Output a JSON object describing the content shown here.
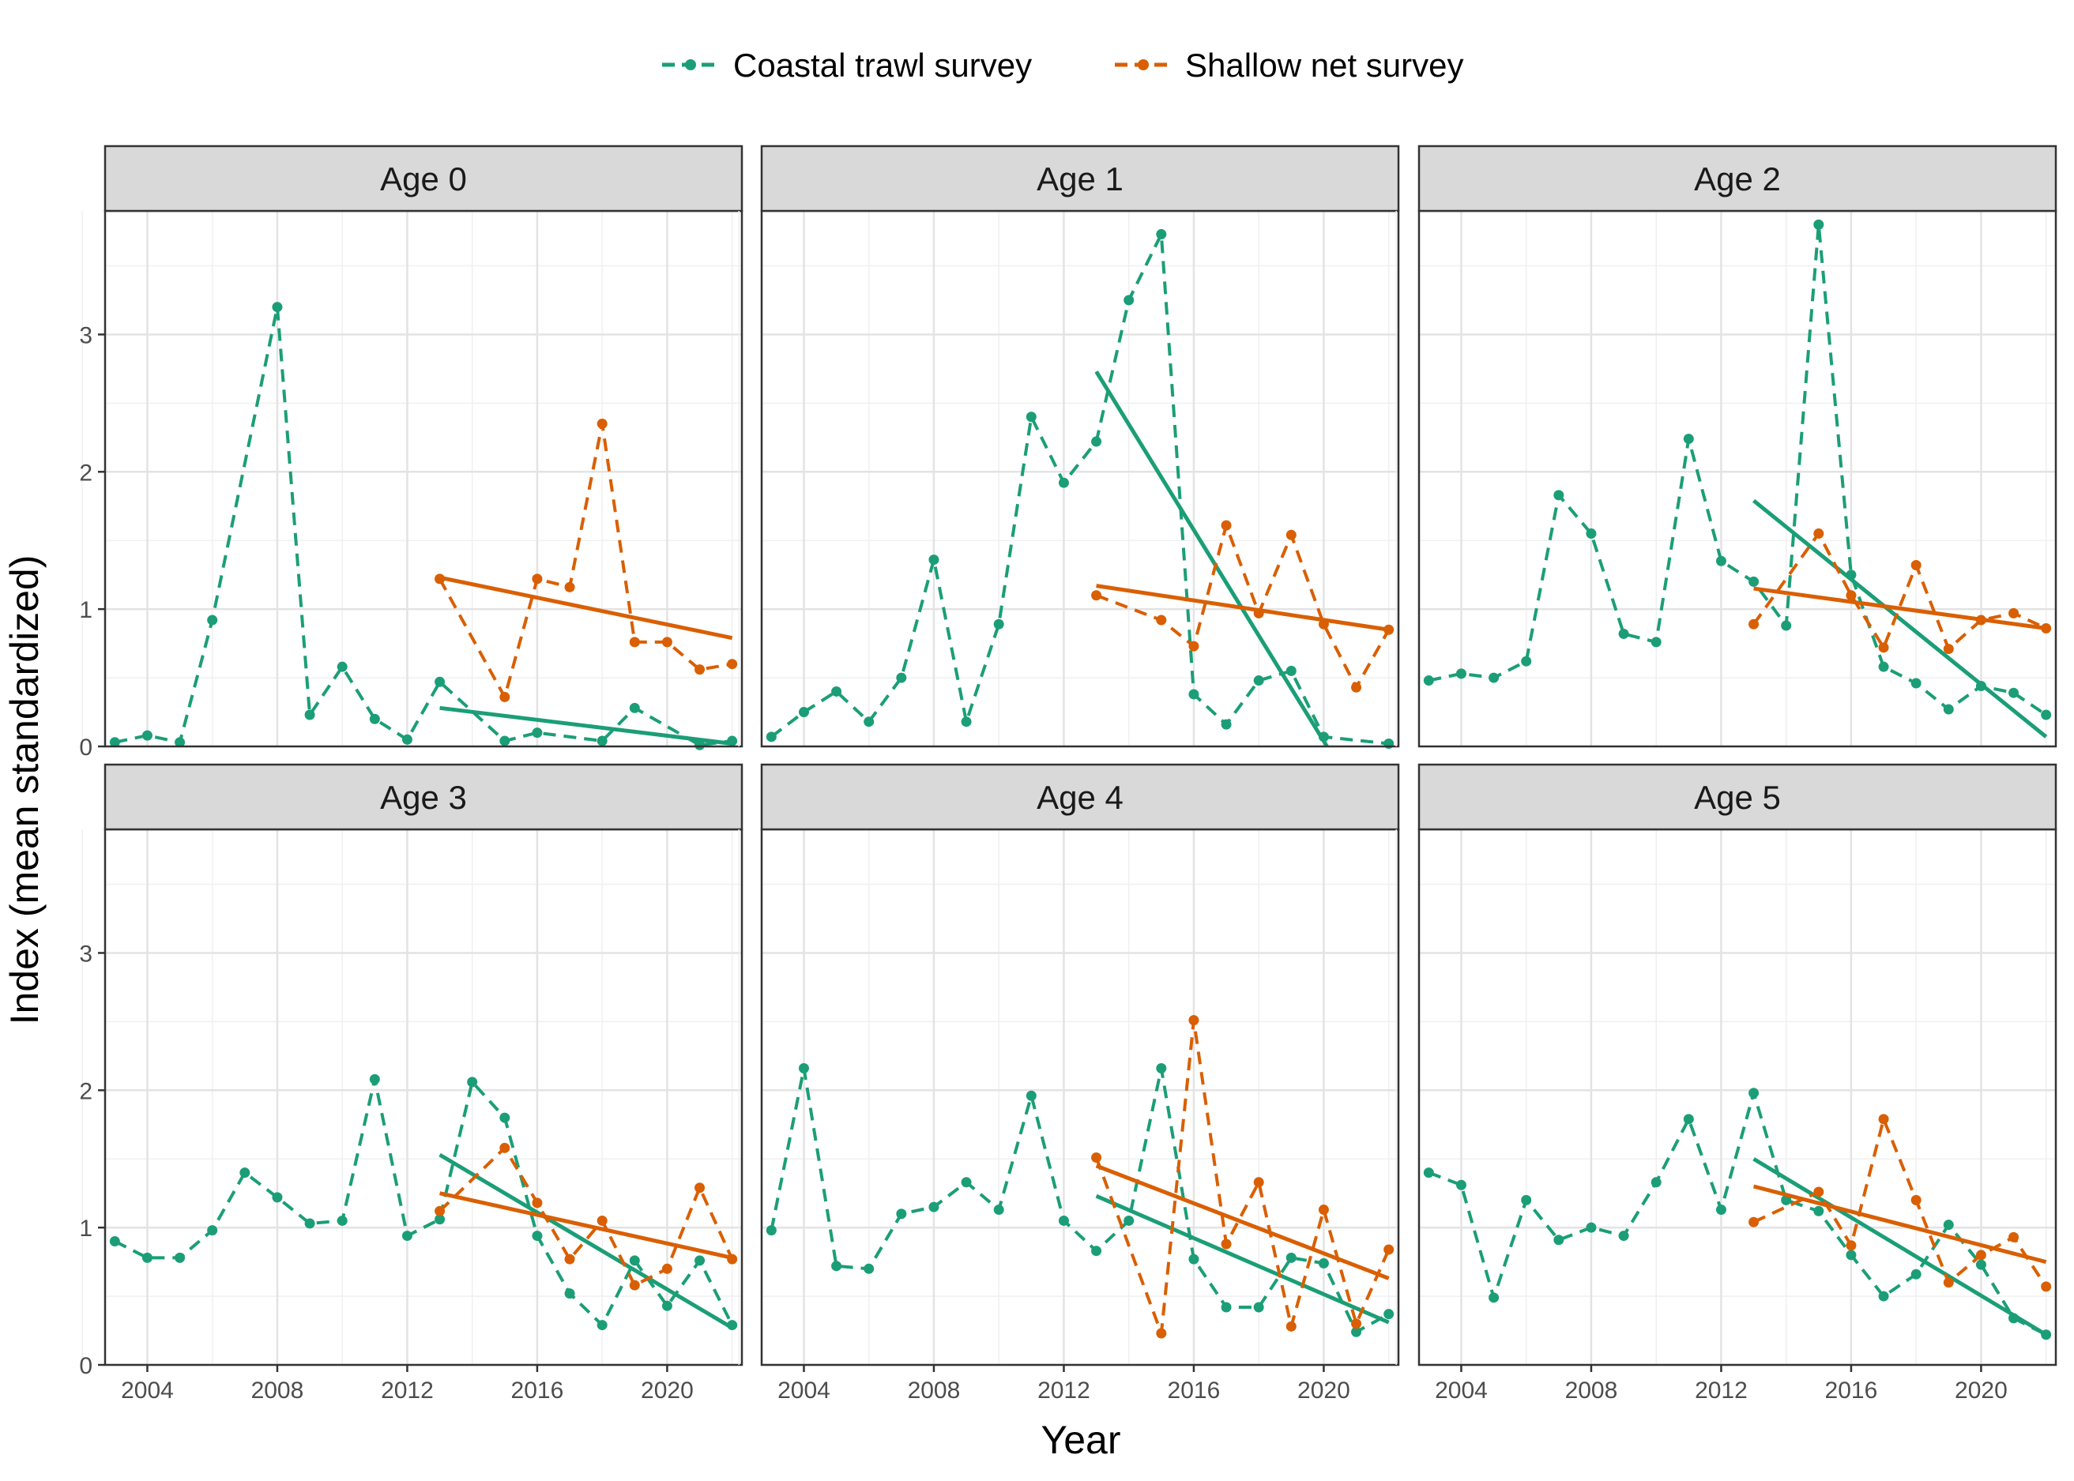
{
  "chart_data": {
    "type": "line",
    "facet_by": "Age",
    "xlabel": "Year",
    "ylabel": "Index (mean standardized)",
    "xlim": [
      2002.7,
      2022.3
    ],
    "ylim": [
      0,
      3.9
    ],
    "x_ticks": [
      2004,
      2008,
      2012,
      2016,
      2020
    ],
    "y_ticks": [
      0,
      1,
      2,
      3
    ],
    "grid": true,
    "legend_position": "top",
    "series": [
      {
        "name": "Coastal trawl survey",
        "color": "#1b9e77",
        "style": "dashed",
        "marker": "point"
      },
      {
        "name": "Shallow net survey",
        "color": "#d95f02",
        "style": "dashed",
        "marker": "point"
      }
    ],
    "panels": [
      {
        "title": "Age 0",
        "series": [
          {
            "name": "Coastal trawl survey",
            "x": [
              2003,
              2004,
              2005,
              2006,
              2007,
              2008,
              2009,
              2010,
              2011,
              2012,
              2013,
              2014,
              2015,
              2016,
              2017,
              2018,
              2019,
              2020,
              2021,
              2022
            ],
            "y": [
              0.03,
              0.08,
              0.03,
              0.92,
              null,
              3.2,
              0.23,
              0.58,
              0.2,
              0.05,
              0.47,
              null,
              0.04,
              0.1,
              null,
              0.04,
              0.28,
              null,
              0.01,
              0.04
            ],
            "trend": {
              "x": [
                2013,
                2022
              ],
              "y": [
                0.28,
                0.02
              ]
            }
          },
          {
            "name": "Shallow net survey",
            "x": [
              2013,
              2014,
              2015,
              2016,
              2017,
              2018,
              2019,
              2020,
              2021,
              2022
            ],
            "y": [
              1.22,
              null,
              0.36,
              1.22,
              1.16,
              2.35,
              0.76,
              0.76,
              0.56,
              0.6
            ],
            "trend": {
              "x": [
                2013,
                2022
              ],
              "y": [
                1.23,
                0.79
              ]
            }
          }
        ]
      },
      {
        "title": "Age 1",
        "series": [
          {
            "name": "Coastal trawl survey",
            "x": [
              2003,
              2004,
              2005,
              2006,
              2007,
              2008,
              2009,
              2010,
              2011,
              2012,
              2013,
              2014,
              2015,
              2016,
              2017,
              2018,
              2019,
              2020,
              2021,
              2022
            ],
            "y": [
              0.07,
              0.25,
              0.4,
              0.18,
              0.5,
              1.36,
              0.18,
              0.89,
              2.4,
              1.92,
              2.22,
              3.25,
              3.73,
              0.38,
              0.16,
              0.48,
              0.55,
              0.07,
              null,
              0.02
            ],
            "trend": {
              "x": [
                2013,
                2020.1
              ],
              "y": [
                2.73,
                0.0
              ]
            }
          },
          {
            "name": "Shallow net survey",
            "x": [
              2013,
              2014,
              2015,
              2016,
              2017,
              2018,
              2019,
              2020,
              2021,
              2022
            ],
            "y": [
              1.1,
              null,
              0.92,
              0.73,
              1.61,
              0.97,
              1.54,
              0.89,
              0.43,
              0.85
            ],
            "trend": {
              "x": [
                2013,
                2022
              ],
              "y": [
                1.17,
                0.85
              ]
            }
          }
        ]
      },
      {
        "title": "Age 2",
        "series": [
          {
            "name": "Coastal trawl survey",
            "x": [
              2003,
              2004,
              2005,
              2006,
              2007,
              2008,
              2009,
              2010,
              2011,
              2012,
              2013,
              2014,
              2015,
              2016,
              2017,
              2018,
              2019,
              2020,
              2021,
              2022
            ],
            "y": [
              0.48,
              0.53,
              0.5,
              0.62,
              1.83,
              1.55,
              0.82,
              0.76,
              2.24,
              1.35,
              1.2,
              0.88,
              3.8,
              1.25,
              0.58,
              0.46,
              0.27,
              0.44,
              0.39,
              0.23
            ],
            "trend": {
              "x": [
                2013,
                2022
              ],
              "y": [
                1.79,
                0.07
              ]
            }
          },
          {
            "name": "Shallow net survey",
            "x": [
              2013,
              2014,
              2015,
              2016,
              2017,
              2018,
              2019,
              2020,
              2021,
              2022
            ],
            "y": [
              0.89,
              null,
              1.55,
              1.1,
              0.72,
              1.32,
              0.71,
              0.92,
              0.97,
              0.86
            ],
            "trend": {
              "x": [
                2013,
                2022
              ],
              "y": [
                1.15,
                0.86
              ]
            }
          }
        ]
      },
      {
        "title": "Age 3",
        "series": [
          {
            "name": "Coastal trawl survey",
            "x": [
              2003,
              2004,
              2005,
              2006,
              2007,
              2008,
              2009,
              2010,
              2011,
              2012,
              2013,
              2014,
              2015,
              2016,
              2017,
              2018,
              2019,
              2020,
              2021,
              2022
            ],
            "y": [
              0.9,
              0.78,
              0.78,
              0.98,
              1.4,
              1.22,
              1.03,
              1.05,
              2.08,
              0.94,
              1.06,
              2.06,
              1.8,
              0.94,
              0.52,
              0.29,
              0.76,
              0.43,
              0.76,
              0.29
            ],
            "trend": {
              "x": [
                2013,
                2022
              ],
              "y": [
                1.53,
                0.27
              ]
            }
          },
          {
            "name": "Shallow net survey",
            "x": [
              2013,
              2014,
              2015,
              2016,
              2017,
              2018,
              2019,
              2020,
              2021,
              2022
            ],
            "y": [
              1.12,
              null,
              1.58,
              1.18,
              0.77,
              1.05,
              0.58,
              0.7,
              1.29,
              0.77
            ],
            "trend": {
              "x": [
                2013,
                2022
              ],
              "y": [
                1.25,
                0.78
              ]
            }
          }
        ]
      },
      {
        "title": "Age 4",
        "series": [
          {
            "name": "Coastal trawl survey",
            "x": [
              2003,
              2004,
              2005,
              2006,
              2007,
              2008,
              2009,
              2010,
              2011,
              2012,
              2013,
              2014,
              2015,
              2016,
              2017,
              2018,
              2019,
              2020,
              2021,
              2022
            ],
            "y": [
              0.98,
              2.16,
              0.72,
              0.7,
              1.1,
              1.15,
              1.33,
              1.13,
              1.96,
              1.05,
              0.83,
              1.05,
              2.16,
              0.77,
              0.42,
              0.42,
              0.78,
              0.74,
              0.24,
              0.37
            ],
            "trend": {
              "x": [
                2013,
                2022
              ],
              "y": [
                1.23,
                0.31
              ]
            }
          },
          {
            "name": "Shallow net survey",
            "x": [
              2013,
              2014,
              2015,
              2016,
              2017,
              2018,
              2019,
              2020,
              2021,
              2022
            ],
            "y": [
              1.51,
              null,
              0.23,
              2.51,
              0.88,
              1.33,
              0.28,
              1.13,
              0.3,
              0.84
            ],
            "trend": {
              "x": [
                2013,
                2022
              ],
              "y": [
                1.45,
                0.63
              ]
            }
          }
        ]
      },
      {
        "title": "Age 5",
        "series": [
          {
            "name": "Coastal trawl survey",
            "x": [
              2003,
              2004,
              2005,
              2006,
              2007,
              2008,
              2009,
              2010,
              2011,
              2012,
              2013,
              2014,
              2015,
              2016,
              2017,
              2018,
              2019,
              2020,
              2021,
              2022
            ],
            "y": [
              1.4,
              1.31,
              0.49,
              1.2,
              0.91,
              1.0,
              0.94,
              1.33,
              1.79,
              1.13,
              1.98,
              1.2,
              1.12,
              0.8,
              0.5,
              0.66,
              1.02,
              0.73,
              0.34,
              0.22
            ],
            "trend": {
              "x": [
                2013,
                2022
              ],
              "y": [
                1.5,
                0.22
              ]
            }
          },
          {
            "name": "Shallow net survey",
            "x": [
              2013,
              2014,
              2015,
              2016,
              2017,
              2018,
              2019,
              2020,
              2021,
              2022
            ],
            "y": [
              1.04,
              null,
              1.26,
              0.87,
              1.79,
              1.2,
              0.6,
              0.8,
              0.93,
              0.57
            ],
            "trend": {
              "x": [
                2013,
                2022
              ],
              "y": [
                1.3,
                0.75
              ]
            }
          }
        ]
      }
    ]
  }
}
